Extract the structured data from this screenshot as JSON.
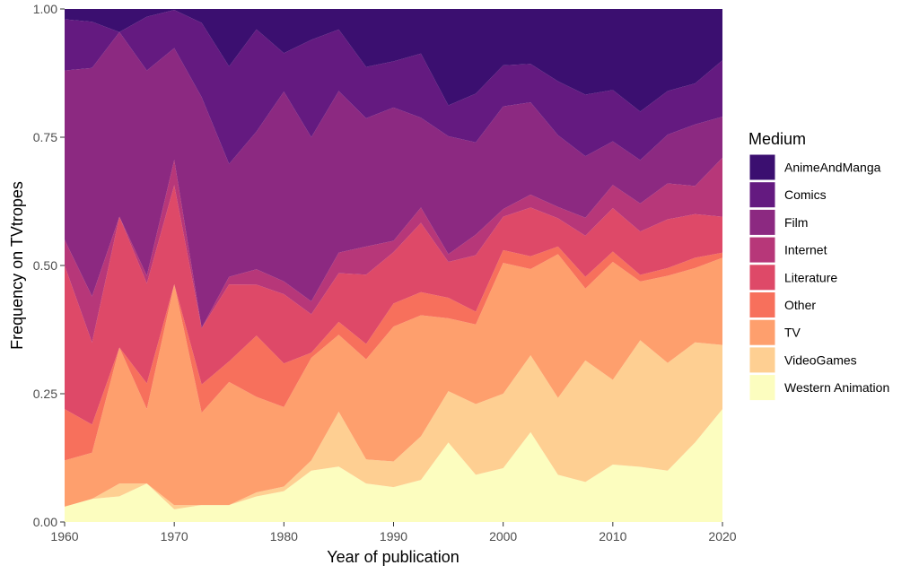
{
  "chart_data": {
    "type": "area",
    "stacked": true,
    "xlabel": "Year of publication",
    "ylabel": "Frequency on TVtropes",
    "xlim": [
      1960,
      2020
    ],
    "ylim": [
      0,
      1
    ],
    "xticks": [
      "1960",
      "1970",
      "1980",
      "1990",
      "2000",
      "2010",
      "2020"
    ],
    "yticks": [
      "0.00",
      "0.25",
      "0.50",
      "0.75",
      "1.00"
    ],
    "grid": "none",
    "legend": {
      "title": "Medium",
      "position": "right"
    },
    "x": [
      1960,
      1962.5,
      1965,
      1967.5,
      1970,
      1972.5,
      1975,
      1977.5,
      1980,
      1982.5,
      1985,
      1987.5,
      1990,
      1992.5,
      1995,
      1997.5,
      2000,
      2002.5,
      2005,
      2007.5,
      2010,
      2012.5,
      2015,
      2017.5,
      2020
    ],
    "series": [
      {
        "name": "Western Animation",
        "color": "#fcfdbf",
        "values": [
          0.03,
          0.045,
          0.05,
          0.075,
          0.025,
          0.033,
          0.033,
          0.05,
          0.06,
          0.1,
          0.108,
          0.075,
          0.068,
          0.082,
          0.155,
          0.092,
          0.105,
          0.175,
          0.092,
          0.078,
          0.112,
          0.108,
          0.1,
          0.155,
          0.22
        ]
      },
      {
        "name": "VideoGames",
        "color": "#fecf92",
        "values": [
          0.0,
          0.0,
          0.025,
          0.0,
          0.008,
          0.0,
          0.0,
          0.008,
          0.009,
          0.02,
          0.107,
          0.047,
          0.05,
          0.085,
          0.1,
          0.138,
          0.145,
          0.15,
          0.15,
          0.237,
          0.165,
          0.248,
          0.21,
          0.195,
          0.125
        ]
      },
      {
        "name": "TV",
        "color": "#fe9f6d",
        "values": [
          0.09,
          0.09,
          0.265,
          0.145,
          0.435,
          0.18,
          0.24,
          0.187,
          0.155,
          0.2,
          0.15,
          0.195,
          0.263,
          0.236,
          0.142,
          0.155,
          0.255,
          0.168,
          0.28,
          0.14,
          0.23,
          0.115,
          0.17,
          0.145,
          0.17
        ]
      },
      {
        "name": "Other",
        "color": "#f7705c",
        "values": [
          0.1,
          0.055,
          0.0,
          0.05,
          0.0,
          0.055,
          0.04,
          0.12,
          0.085,
          0.01,
          0.025,
          0.03,
          0.045,
          0.045,
          0.04,
          0.025,
          0.025,
          0.025,
          0.015,
          0.023,
          0.02,
          0.013,
          0.015,
          0.02,
          0.01
        ]
      },
      {
        "name": "Literature",
        "color": "#de4968",
        "values": [
          0.28,
          0.16,
          0.255,
          0.195,
          0.195,
          0.11,
          0.15,
          0.1,
          0.135,
          0.075,
          0.095,
          0.135,
          0.1,
          0.135,
          0.07,
          0.11,
          0.065,
          0.095,
          0.055,
          0.08,
          0.085,
          0.085,
          0.095,
          0.085,
          0.07
        ]
      },
      {
        "name": "Internet",
        "color": "#b73779",
        "values": [
          0.05,
          0.09,
          0.0,
          0.015,
          0.05,
          0.0,
          0.015,
          0.03,
          0.025,
          0.025,
          0.04,
          0.055,
          0.022,
          0.03,
          0.015,
          0.04,
          0.015,
          0.025,
          0.022,
          0.035,
          0.045,
          0.055,
          0.07,
          0.055,
          0.115
        ]
      },
      {
        "name": "Film",
        "color": "#8c2981",
        "values": [
          0.33,
          0.445,
          0.36,
          0.4,
          0.22,
          0.45,
          0.22,
          0.27,
          0.37,
          0.32,
          0.315,
          0.25,
          0.26,
          0.175,
          0.23,
          0.18,
          0.2,
          0.18,
          0.14,
          0.12,
          0.085,
          0.085,
          0.095,
          0.12,
          0.08
        ]
      },
      {
        "name": "Comics",
        "color": "#641a80",
        "values": [
          0.1,
          0.09,
          0.0,
          0.105,
          0.075,
          0.145,
          0.19,
          0.2,
          0.075,
          0.19,
          0.12,
          0.1,
          0.09,
          0.125,
          0.06,
          0.095,
          0.08,
          0.075,
          0.105,
          0.12,
          0.1,
          0.095,
          0.085,
          0.08,
          0.11
        ]
      },
      {
        "name": "AnimeAndManga",
        "color": "#3b0f70",
        "values": [
          0.02,
          0.025,
          0.045,
          0.015,
          0.002,
          0.027,
          0.112,
          0.04,
          0.086,
          0.06,
          0.04,
          0.113,
          0.102,
          0.087,
          0.188,
          0.165,
          0.11,
          0.107,
          0.141,
          0.167,
          0.158,
          0.201,
          0.16,
          0.145,
          0.1
        ]
      }
    ]
  }
}
